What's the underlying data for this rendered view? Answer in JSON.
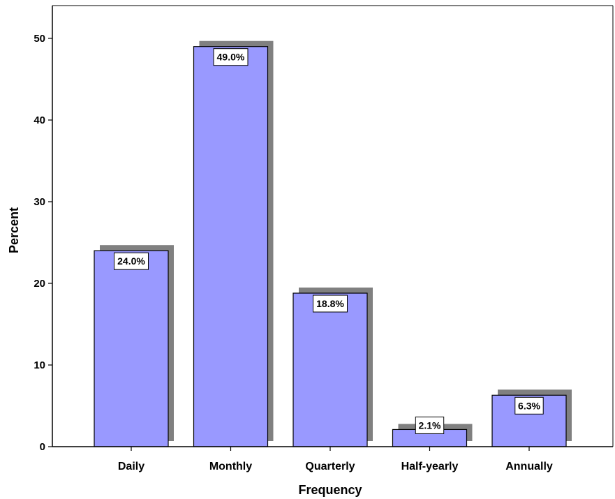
{
  "chart_data": {
    "type": "bar",
    "categories": [
      "Daily",
      "Monthly",
      "Quarterly",
      "Half-yearly",
      "Annually"
    ],
    "values": [
      24.0,
      49.0,
      18.8,
      2.1,
      6.3
    ],
    "data_labels": [
      "24.0%",
      "49.0%",
      "18.8%",
      "2.1%",
      "6.3%"
    ],
    "xlabel": "Frequency",
    "ylabel": "Percent",
    "ylim": [
      0,
      50
    ],
    "yticks": [
      0,
      10,
      20,
      30,
      40,
      50
    ],
    "grid": false,
    "colors": {
      "bar_fill": "#9999ff",
      "bar_stroke": "#000000",
      "shadow": "#808080",
      "label_box": "#ffffff"
    }
  }
}
